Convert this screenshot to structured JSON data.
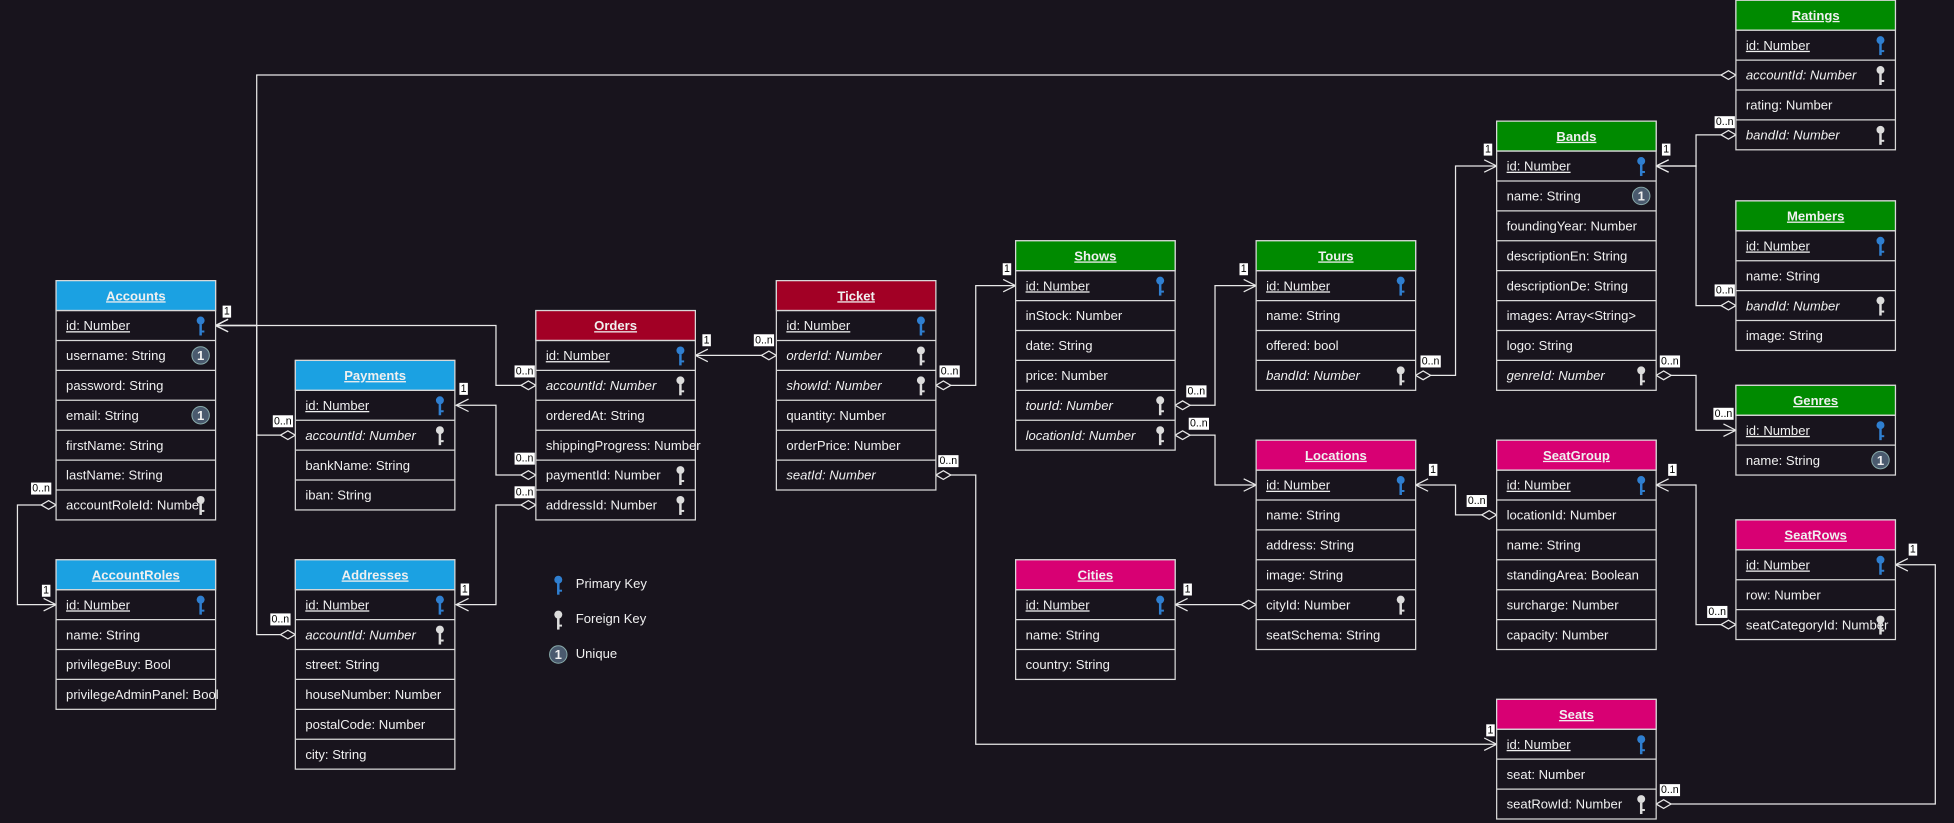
{
  "entities": [
    {
      "name": "Accounts",
      "color": "#1ba1e2",
      "fields": [
        {
          "text": "id: Number",
          "key": "pk"
        },
        {
          "text": "username: String",
          "key": "unique"
        },
        {
          "text": "password: String"
        },
        {
          "text": "email: String",
          "key": "unique"
        },
        {
          "text": "firstName: String"
        },
        {
          "text": "lastName: String"
        },
        {
          "text": "accountRoleId: Number",
          "key": "fk"
        }
      ]
    },
    {
      "name": "AccountRoles",
      "color": "#1ba1e2",
      "fields": [
        {
          "text": "id: Number",
          "key": "pk"
        },
        {
          "text": "name: String"
        },
        {
          "text": "privilegeBuy: Bool"
        },
        {
          "text": "privilegeAdminPanel: Bool"
        }
      ]
    },
    {
      "name": "Payments",
      "color": "#1ba1e2",
      "fields": [
        {
          "text": "id: Number",
          "key": "pk"
        },
        {
          "text": "accountId: Number",
          "key": "fk",
          "italic": true
        },
        {
          "text": "bankName: String"
        },
        {
          "text": "iban: String"
        }
      ]
    },
    {
      "name": "Addresses",
      "color": "#1ba1e2",
      "fields": [
        {
          "text": "id: Number",
          "key": "pk"
        },
        {
          "text": "accountId: Number",
          "key": "fk",
          "italic": true
        },
        {
          "text": "street: String"
        },
        {
          "text": "houseNumber: Number"
        },
        {
          "text": "postalCode: Number"
        },
        {
          "text": "city: String"
        }
      ]
    },
    {
      "name": "Orders",
      "color": "#a20025",
      "fields": [
        {
          "text": "id: Number",
          "key": "pk"
        },
        {
          "text": "accountId: Number",
          "key": "fk",
          "italic": true
        },
        {
          "text": "orderedAt: String"
        },
        {
          "text": "shippingProgress: Number"
        },
        {
          "text": "paymentId: Number",
          "key": "fk"
        },
        {
          "text": "addressId: Number",
          "key": "fk"
        }
      ]
    },
    {
      "name": "Ticket",
      "color": "#a20025",
      "fields": [
        {
          "text": "id: Number",
          "key": "pk"
        },
        {
          "text": "orderId: Number",
          "key": "fk",
          "italic": true
        },
        {
          "text": "showId: Number",
          "key": "fk",
          "italic": true
        },
        {
          "text": "quantity: Number"
        },
        {
          "text": "orderPrice: Number"
        },
        {
          "text": "seatId: Number",
          "italic": true
        }
      ]
    },
    {
      "name": "Shows",
      "color": "#008a00",
      "fields": [
        {
          "text": "id: Number",
          "key": "pk"
        },
        {
          "text": "inStock: Number"
        },
        {
          "text": "date: String"
        },
        {
          "text": "price: Number"
        },
        {
          "text": "tourId: Number",
          "key": "fk",
          "italic": true
        },
        {
          "text": "locationId: Number",
          "key": "fk",
          "italic": true
        }
      ]
    },
    {
      "name": "Tours",
      "color": "#008a00",
      "fields": [
        {
          "text": "id: Number",
          "key": "pk"
        },
        {
          "text": "name: String"
        },
        {
          "text": "offered: bool"
        },
        {
          "text": "bandId: Number",
          "key": "fk",
          "italic": true
        }
      ]
    },
    {
      "name": "Bands",
      "color": "#008a00",
      "fields": [
        {
          "text": "id: Number",
          "key": "pk"
        },
        {
          "text": "name: String",
          "key": "unique"
        },
        {
          "text": "foundingYear: Number"
        },
        {
          "text": "descriptionEn: String"
        },
        {
          "text": "descriptionDe: String"
        },
        {
          "text": "images: Array<String>"
        },
        {
          "text": "logo: String"
        },
        {
          "text": "genreId: Number",
          "key": "fk",
          "italic": true
        }
      ]
    },
    {
      "name": "Ratings",
      "color": "#008a00",
      "fields": [
        {
          "text": "id: Number",
          "key": "pk"
        },
        {
          "text": "accountId: Number",
          "key": "fk",
          "italic": true
        },
        {
          "text": "rating: Number"
        },
        {
          "text": "bandId: Number",
          "key": "fk",
          "italic": true
        }
      ]
    },
    {
      "name": "Members",
      "color": "#008a00",
      "fields": [
        {
          "text": "id: Number",
          "key": "pk"
        },
        {
          "text": "name: String"
        },
        {
          "text": "bandId: Number",
          "key": "fk",
          "italic": true
        },
        {
          "text": "image: String"
        }
      ]
    },
    {
      "name": "Genres",
      "color": "#008a00",
      "fields": [
        {
          "text": "id: Number",
          "key": "pk"
        },
        {
          "text": "name: String",
          "key": "unique"
        }
      ]
    },
    {
      "name": "Locations",
      "color": "#d80073",
      "fields": [
        {
          "text": "id: Number",
          "key": "pk"
        },
        {
          "text": "name: String"
        },
        {
          "text": "address: String"
        },
        {
          "text": "image: String"
        },
        {
          "text": "cityId: Number",
          "key": "fk"
        },
        {
          "text": "seatSchema: String"
        }
      ]
    },
    {
      "name": "Cities",
      "color": "#d80073",
      "fields": [
        {
          "text": "id: Number",
          "key": "pk"
        },
        {
          "text": "name: String"
        },
        {
          "text": "country: String"
        }
      ]
    },
    {
      "name": "SeatGroup",
      "color": "#d80073",
      "fields": [
        {
          "text": "id: Number",
          "key": "pk"
        },
        {
          "text": "locationId: Number"
        },
        {
          "text": "name: String"
        },
        {
          "text": "standingArea: Boolean"
        },
        {
          "text": "surcharge: Number"
        },
        {
          "text": "capacity: Number"
        }
      ]
    },
    {
      "name": "SeatRows",
      "color": "#d80073",
      "fields": [
        {
          "text": "id: Number",
          "key": "pk"
        },
        {
          "text": "row: Number"
        },
        {
          "text": "seatCategoryId: Number",
          "key": "fk"
        }
      ]
    },
    {
      "name": "Seats",
      "color": "#d80073",
      "fields": [
        {
          "text": "id: Number",
          "key": "pk"
        },
        {
          "text": "seat: Number"
        },
        {
          "text": "seatRowId: Number",
          "key": "fk"
        }
      ]
    }
  ],
  "relations": [
    {
      "labels": [
        "1",
        "0..n"
      ]
    },
    {
      "labels": [
        "0..n"
      ]
    },
    {
      "labels": [
        "0..n"
      ]
    },
    {
      "labels": [
        "0..n"
      ]
    },
    {
      "labels": [
        "0..n",
        "1"
      ]
    },
    {
      "labels": [
        "1",
        "0..n"
      ]
    },
    {
      "labels": [
        "1",
        "0..n"
      ]
    },
    {
      "labels": [
        "1",
        "0..n"
      ]
    },
    {
      "labels": [
        "0..n",
        "1"
      ]
    },
    {
      "labels": [
        "0..n",
        "1"
      ]
    },
    {
      "labels": [
        "0..n"
      ]
    },
    {
      "labels": [
        "0..n",
        "1"
      ]
    },
    {
      "labels": [
        "1",
        "0..n"
      ]
    },
    {
      "labels": [
        "0..n"
      ]
    },
    {
      "labels": [
        "0..n",
        "0..n"
      ]
    },
    {
      "labels": [
        "1",
        "0..n"
      ]
    },
    {
      "labels": [
        "1",
        "0..n"
      ]
    },
    {
      "labels": [
        "1",
        "0..n"
      ]
    },
    {
      "labels": [
        "0..n",
        "1"
      ]
    },
    {
      "labels": [
        "0..n",
        "1"
      ]
    }
  ],
  "legend": {
    "primary_key": "Primary Key",
    "foreign_key": "Foreign Key",
    "unique": "Unique",
    "unique_symbol": "1"
  }
}
